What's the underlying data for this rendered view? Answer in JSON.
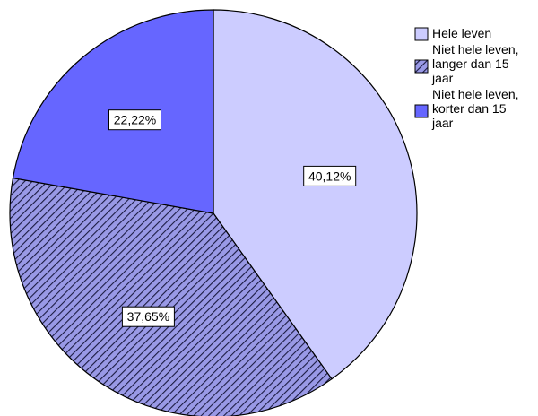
{
  "chart_data": {
    "type": "pie",
    "start_angle_deg": 0,
    "direction": "clockwise",
    "legend_position": "top-right",
    "slices": [
      {
        "name": "Hele leven",
        "value": 40.12,
        "label": "40,12%",
        "fill": "#ccccff",
        "pattern": "solid"
      },
      {
        "name": "Niet hele leven, langer dan 15 jaar",
        "value": 37.65,
        "label": "37,65%",
        "fill": "#9999e6",
        "pattern": "diagonal-hatch"
      },
      {
        "name": "Niet hele leven, korter dan 15 jaar",
        "value": 22.22,
        "label": "22,22%",
        "fill": "#6666ff",
        "pattern": "solid"
      }
    ],
    "legend": [
      {
        "lines": [
          "Hele leven"
        ]
      },
      {
        "lines": [
          "Niet hele leven,",
          "langer dan 15",
          "jaar"
        ]
      },
      {
        "lines": [
          "Niet hele leven,",
          "korter dan 15",
          "jaar"
        ]
      }
    ]
  }
}
